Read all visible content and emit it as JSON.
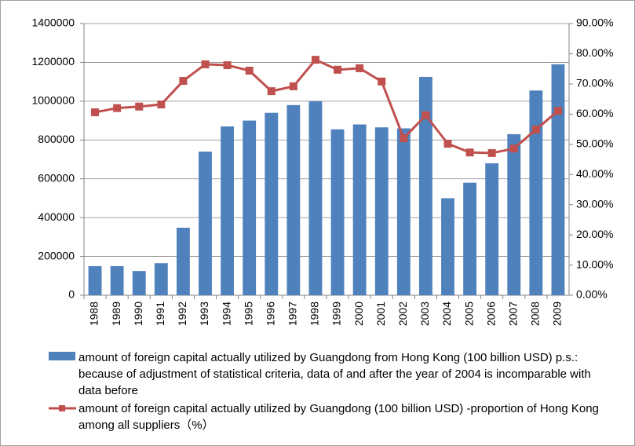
{
  "chart_data": {
    "type": "bar",
    "categories": [
      "1988",
      "1989",
      "1990",
      "1991",
      "1992",
      "1993",
      "1994",
      "1995",
      "1996",
      "1997",
      "1998",
      "1999",
      "2000",
      "2001",
      "2002",
      "2003",
      "2004",
      "2005",
      "2006",
      "2007",
      "2008",
      "2009"
    ],
    "series": [
      {
        "name": "amount of foreign capital actually utilized by Guangdong from Hong Kong (100 billion USD) p.s.: because of adjustment of statistical criteria, data of and after the year of 2004 is incomparable with data before",
        "type": "bar",
        "color": "#4f81bd",
        "values": [
          150000,
          150000,
          125000,
          165000,
          348000,
          740000,
          870000,
          900000,
          940000,
          980000,
          1000000,
          855000,
          880000,
          865000,
          860000,
          1125000,
          500000,
          580000,
          680000,
          830000,
          1055000,
          1190000
        ]
      },
      {
        "name": "amount of foreign capital actually utilized by Guangdong (100 billion USD) -proportion of Hong Kong among all suppliers（%）",
        "type": "line",
        "axis": "y2",
        "color": "#c0504d",
        "values": [
          60.6,
          62,
          62.5,
          63.2,
          71,
          76.5,
          76.2,
          74.4,
          67.6,
          69.2,
          78,
          74.7,
          75.2,
          70.8,
          52,
          59.6,
          50.2,
          47.3,
          47.1,
          48.6,
          54.9,
          61.1
        ]
      }
    ],
    "ylim": [
      0,
      1400000
    ],
    "yticks": [
      0,
      200000,
      400000,
      600000,
      800000,
      1000000,
      1200000,
      1400000
    ],
    "y2lim": [
      0,
      90
    ],
    "y2ticks": [
      {
        "value": 0,
        "label": "0.00%"
      },
      {
        "value": 10,
        "label": "10.00%"
      },
      {
        "value": 20,
        "label": "20.00%"
      },
      {
        "value": 30,
        "label": "30.00%"
      },
      {
        "value": 40,
        "label": "40.00%"
      },
      {
        "value": 50,
        "label": "50.00%"
      },
      {
        "value": 60,
        "label": "60.00%"
      },
      {
        "value": 70,
        "label": "70.00%"
      },
      {
        "value": 80,
        "label": "80.00%"
      },
      {
        "value": 90,
        "label": "90.00%"
      }
    ],
    "grid": true
  }
}
